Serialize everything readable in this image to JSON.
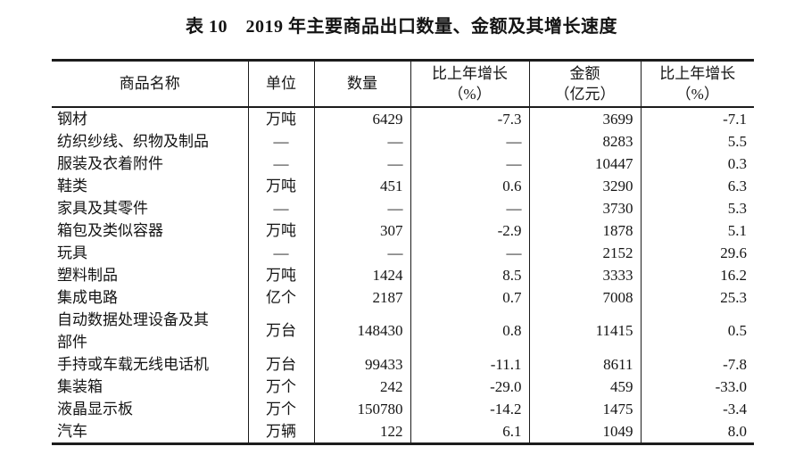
{
  "page": {
    "title": "表 10　2019 年主要商品出口数量、金额及其增长速度"
  },
  "colors": {
    "background": "#ffffff",
    "text": "#141414",
    "border": "#1c1c1c"
  },
  "table": {
    "columns": {
      "name": "商品名称",
      "unit": "单位",
      "quantity": "数量",
      "quantity_growth": "比上年增长\n（%）",
      "amount": "金额\n（亿元）",
      "amount_growth": "比上年增长\n（%）"
    },
    "rows": [
      {
        "name": "钢材",
        "unit": "万吨",
        "quantity": "6429",
        "quantity_growth": "-7.3",
        "amount": "3699",
        "amount_growth": "-7.1"
      },
      {
        "name": "纺织纱线、织物及制品",
        "unit": "—",
        "quantity": "—",
        "quantity_growth": "—",
        "amount": "8283",
        "amount_growth": "5.5"
      },
      {
        "name": "服装及衣着附件",
        "unit": "—",
        "quantity": "—",
        "quantity_growth": "—",
        "amount": "10447",
        "amount_growth": "0.3"
      },
      {
        "name": "鞋类",
        "unit": "万吨",
        "quantity": "451",
        "quantity_growth": "0.6",
        "amount": "3290",
        "amount_growth": "6.3"
      },
      {
        "name": "家具及其零件",
        "unit": "—",
        "quantity": "—",
        "quantity_growth": "—",
        "amount": "3730",
        "amount_growth": "5.3"
      },
      {
        "name": "箱包及类似容器",
        "unit": "万吨",
        "quantity": "307",
        "quantity_growth": "-2.9",
        "amount": "1878",
        "amount_growth": "5.1"
      },
      {
        "name": "玩具",
        "unit": "—",
        "quantity": "—",
        "quantity_growth": "—",
        "amount": "2152",
        "amount_growth": "29.6"
      },
      {
        "name": "塑料制品",
        "unit": "万吨",
        "quantity": "1424",
        "quantity_growth": "8.5",
        "amount": "3333",
        "amount_growth": "16.2"
      },
      {
        "name": "集成电路",
        "unit": "亿个",
        "quantity": "2187",
        "quantity_growth": "0.7",
        "amount": "7008",
        "amount_growth": "25.3"
      },
      {
        "name": "自动数据处理设备及其\n部件",
        "unit": "万台",
        "quantity": "148430",
        "quantity_growth": "0.8",
        "amount": "11415",
        "amount_growth": "0.5"
      },
      {
        "name": "手持或车载无线电话机",
        "unit": "万台",
        "quantity": "99433",
        "quantity_growth": "-11.1",
        "amount": "8611",
        "amount_growth": "-7.8"
      },
      {
        "name": "集装箱",
        "unit": "万个",
        "quantity": "242",
        "quantity_growth": "-29.0",
        "amount": "459",
        "amount_growth": "-33.0"
      },
      {
        "name": "液晶显示板",
        "unit": "万个",
        "quantity": "150780",
        "quantity_growth": "-14.2",
        "amount": "1475",
        "amount_growth": "-3.4"
      },
      {
        "name": "汽车",
        "unit": "万辆",
        "quantity": "122",
        "quantity_growth": "6.1",
        "amount": "1049",
        "amount_growth": "8.0"
      }
    ]
  }
}
